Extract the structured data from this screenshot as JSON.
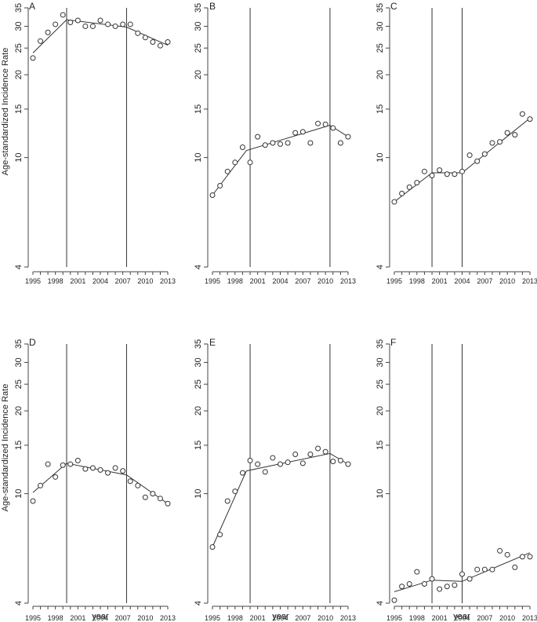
{
  "figure": {
    "ylabel": "Age-standardized Incidence Rate",
    "xlabel": "year"
  },
  "chart_data": [
    {
      "type": "scatter",
      "panel": "A",
      "scale": "log",
      "ylim": [
        4,
        35
      ],
      "yticks": [
        4,
        10,
        15,
        20,
        25,
        30,
        35
      ],
      "xticks": [
        1995,
        1998,
        2001,
        2004,
        2007,
        2010,
        2013
      ],
      "joinpoints": [
        1999.5,
        2007.5
      ],
      "x": [
        1995,
        1996,
        1997,
        1998,
        1999,
        2000,
        2001,
        2002,
        2003,
        2004,
        2005,
        2006,
        2007,
        2008,
        2009,
        2010,
        2011,
        2012,
        2013
      ],
      "observed": [
        23,
        26.5,
        28.5,
        30.5,
        33,
        31,
        31.5,
        30,
        30,
        31.5,
        30.5,
        30,
        30.5,
        30.5,
        28.3,
        27.3,
        26.3,
        25.5,
        26.3
      ],
      "fitted": [
        [
          1995,
          24
        ],
        [
          1999.5,
          31.7
        ],
        [
          2007.5,
          29.8
        ],
        [
          2013,
          25.6
        ]
      ]
    },
    {
      "type": "scatter",
      "panel": "B",
      "scale": "log",
      "ylim": [
        4,
        35
      ],
      "yticks": [
        4,
        10,
        15,
        20,
        25,
        30,
        35
      ],
      "xticks": [
        1995,
        1998,
        2001,
        2004,
        2007,
        2010,
        2013
      ],
      "joinpoints": [
        2000,
        2010.6
      ],
      "x": [
        1995,
        1996,
        1997,
        1998,
        1999,
        2000,
        2001,
        2002,
        2003,
        2004,
        2005,
        2006,
        2007,
        2008,
        2009,
        2010,
        2011,
        2012,
        2013
      ],
      "observed": [
        7.3,
        7.9,
        8.9,
        9.6,
        10.9,
        9.6,
        11.9,
        11.1,
        11.3,
        11.2,
        11.3,
        12.3,
        12.4,
        11.3,
        13.3,
        13.2,
        12.8,
        11.3,
        11.9
      ],
      "fitted": [
        [
          1995,
          7.3
        ],
        [
          1999.5,
          10.6
        ],
        [
          2010.6,
          13.1
        ],
        [
          2013,
          11.9
        ]
      ]
    },
    {
      "type": "scatter",
      "panel": "C",
      "scale": "log",
      "ylim": [
        4,
        35
      ],
      "yticks": [
        4,
        10,
        15,
        20,
        25,
        30,
        35
      ],
      "xticks": [
        1995,
        1998,
        2001,
        2004,
        2007,
        2010,
        2013
      ],
      "joinpoints": [
        2000,
        2004
      ],
      "x": [
        1995,
        1996,
        1997,
        1998,
        1999,
        2000,
        2001,
        2002,
        2003,
        2004,
        2005,
        2006,
        2007,
        2008,
        2009,
        2010,
        2011,
        2012,
        2013
      ],
      "observed": [
        6.9,
        7.4,
        7.8,
        8.1,
        8.9,
        8.6,
        9,
        8.7,
        8.7,
        8.9,
        10.2,
        9.7,
        10.3,
        11.3,
        11.4,
        12.3,
        12.1,
        14.4,
        13.8
      ],
      "fitted": [
        [
          1995,
          6.9
        ],
        [
          2000,
          8.8
        ],
        [
          2004,
          8.8
        ],
        [
          2013,
          13.9
        ]
      ]
    },
    {
      "type": "scatter",
      "panel": "D",
      "scale": "log",
      "ylim": [
        4,
        35
      ],
      "yticks": [
        4,
        10,
        15,
        20,
        25,
        30,
        35
      ],
      "xticks": [
        1995,
        1998,
        2001,
        2004,
        2007,
        2010,
        2013
      ],
      "joinpoints": [
        1999.5,
        2007.5
      ],
      "x": [
        1995,
        1996,
        1997,
        1998,
        1999,
        2000,
        2001,
        2002,
        2003,
        2004,
        2005,
        2006,
        2007,
        2008,
        2009,
        2010,
        2011,
        2012,
        2013
      ],
      "observed": [
        9.4,
        10.7,
        12.8,
        11.5,
        12.7,
        12.8,
        13.2,
        12.3,
        12.4,
        12.2,
        11.9,
        12.4,
        12.1,
        11.1,
        10.7,
        9.7,
        10.0,
        9.6,
        9.2
      ],
      "fitted": [
        [
          1995,
          10.1
        ],
        [
          1999.5,
          12.9
        ],
        [
          2007.5,
          11.7
        ],
        [
          2013,
          9.2
        ]
      ]
    },
    {
      "type": "scatter",
      "panel": "E",
      "scale": "log",
      "ylim": [
        4,
        35
      ],
      "yticks": [
        4,
        10,
        15,
        20,
        25,
        30,
        35
      ],
      "xticks": [
        1995,
        1998,
        2001,
        2004,
        2007,
        2010,
        2013
      ],
      "joinpoints": [
        2000,
        2010.6
      ],
      "x": [
        1995,
        1996,
        1997,
        1998,
        1999,
        2000,
        2001,
        2002,
        2003,
        2004,
        2005,
        2006,
        2007,
        2008,
        2009,
        2010,
        2011,
        2012,
        2013
      ],
      "observed": [
        6.4,
        7.1,
        9.4,
        10.2,
        11.9,
        13.2,
        12.8,
        12.0,
        13.5,
        12.8,
        13.0,
        13.9,
        12.9,
        13.9,
        14.6,
        14.2,
        13.1,
        13.2,
        12.8
      ],
      "fitted": [
        [
          1995,
          6.4
        ],
        [
          1999.5,
          12.1
        ],
        [
          2010.6,
          14.0
        ],
        [
          2013,
          12.8
        ]
      ]
    },
    {
      "type": "scatter",
      "panel": "F",
      "scale": "log",
      "ylim": [
        4,
        35
      ],
      "yticks": [
        4,
        10,
        15,
        20,
        25,
        30,
        35
      ],
      "xticks": [
        1995,
        1998,
        2001,
        2004,
        2007,
        2010,
        2013
      ],
      "joinpoints": [
        2000,
        2004
      ],
      "x": [
        1995,
        1996,
        1997,
        1998,
        1999,
        2000,
        2001,
        2002,
        2003,
        2004,
        2005,
        2006,
        2007,
        2008,
        2009,
        2010,
        2011,
        2012,
        2013
      ],
      "observed": [
        4.1,
        4.6,
        4.7,
        5.2,
        4.7,
        4.9,
        4.5,
        4.6,
        4.65,
        5.1,
        4.9,
        5.3,
        5.3,
        5.3,
        6.2,
        6.0,
        5.4,
        5.9,
        5.9
      ],
      "fitted": [
        [
          1995,
          4.4
        ],
        [
          2000,
          4.85
        ],
        [
          2004,
          4.8
        ],
        [
          2013,
          6.1
        ]
      ]
    }
  ]
}
